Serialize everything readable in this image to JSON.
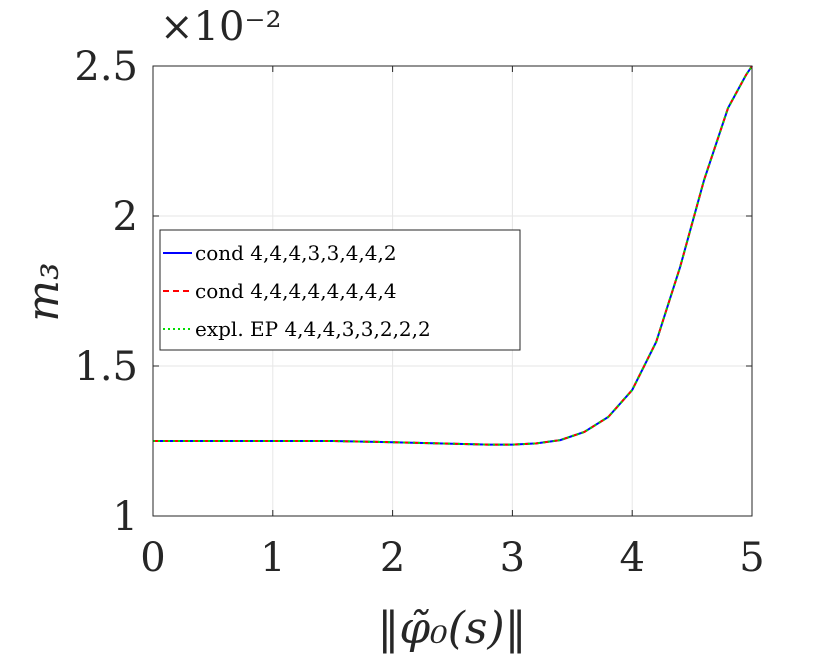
{
  "chart_data": {
    "type": "line",
    "title": "",
    "xlabel": "‖φ̃₀(s)‖",
    "ylabel": "m₃",
    "y_multiplier": "×10⁻²",
    "xlim": [
      0,
      5
    ],
    "ylim": [
      1,
      2.5
    ],
    "grid": true,
    "legend_position": "middle-left",
    "x_ticks": [
      "0",
      "1",
      "2",
      "3",
      "4",
      "5"
    ],
    "y_ticks": [
      "1",
      "1.5",
      "2",
      "2.5"
    ],
    "x": [
      0,
      0.5,
      1,
      1.5,
      2,
      2.5,
      2.8,
      3,
      3.2,
      3.4,
      3.6,
      3.8,
      4,
      4.2,
      4.4,
      4.6,
      4.8,
      4.95,
      5
    ],
    "series": [
      {
        "name": "cond 4,4,4,3,3,4,4,2",
        "color": "#0000ff",
        "style": "solid",
        "y": [
          1.25,
          1.25,
          1.25,
          1.25,
          1.246,
          1.241,
          1.238,
          1.238,
          1.242,
          1.253,
          1.28,
          1.33,
          1.42,
          1.58,
          1.83,
          2.12,
          2.36,
          2.47,
          2.5
        ]
      },
      {
        "name": "cond 4,4,4,4,4,4,4,4",
        "color": "#ff0000",
        "style": "dashed",
        "y": [
          1.25,
          1.25,
          1.25,
          1.25,
          1.246,
          1.241,
          1.238,
          1.238,
          1.242,
          1.253,
          1.28,
          1.33,
          1.42,
          1.58,
          1.83,
          2.12,
          2.36,
          2.47,
          2.5
        ]
      },
      {
        "name": "expl. EP 4,4,4,3,3,2,2,2",
        "color": "#00dd00",
        "style": "dotted",
        "y": [
          1.25,
          1.25,
          1.25,
          1.25,
          1.246,
          1.241,
          1.238,
          1.238,
          1.242,
          1.253,
          1.28,
          1.33,
          1.42,
          1.58,
          1.83,
          2.12,
          2.36,
          2.47,
          2.5
        ]
      }
    ]
  }
}
